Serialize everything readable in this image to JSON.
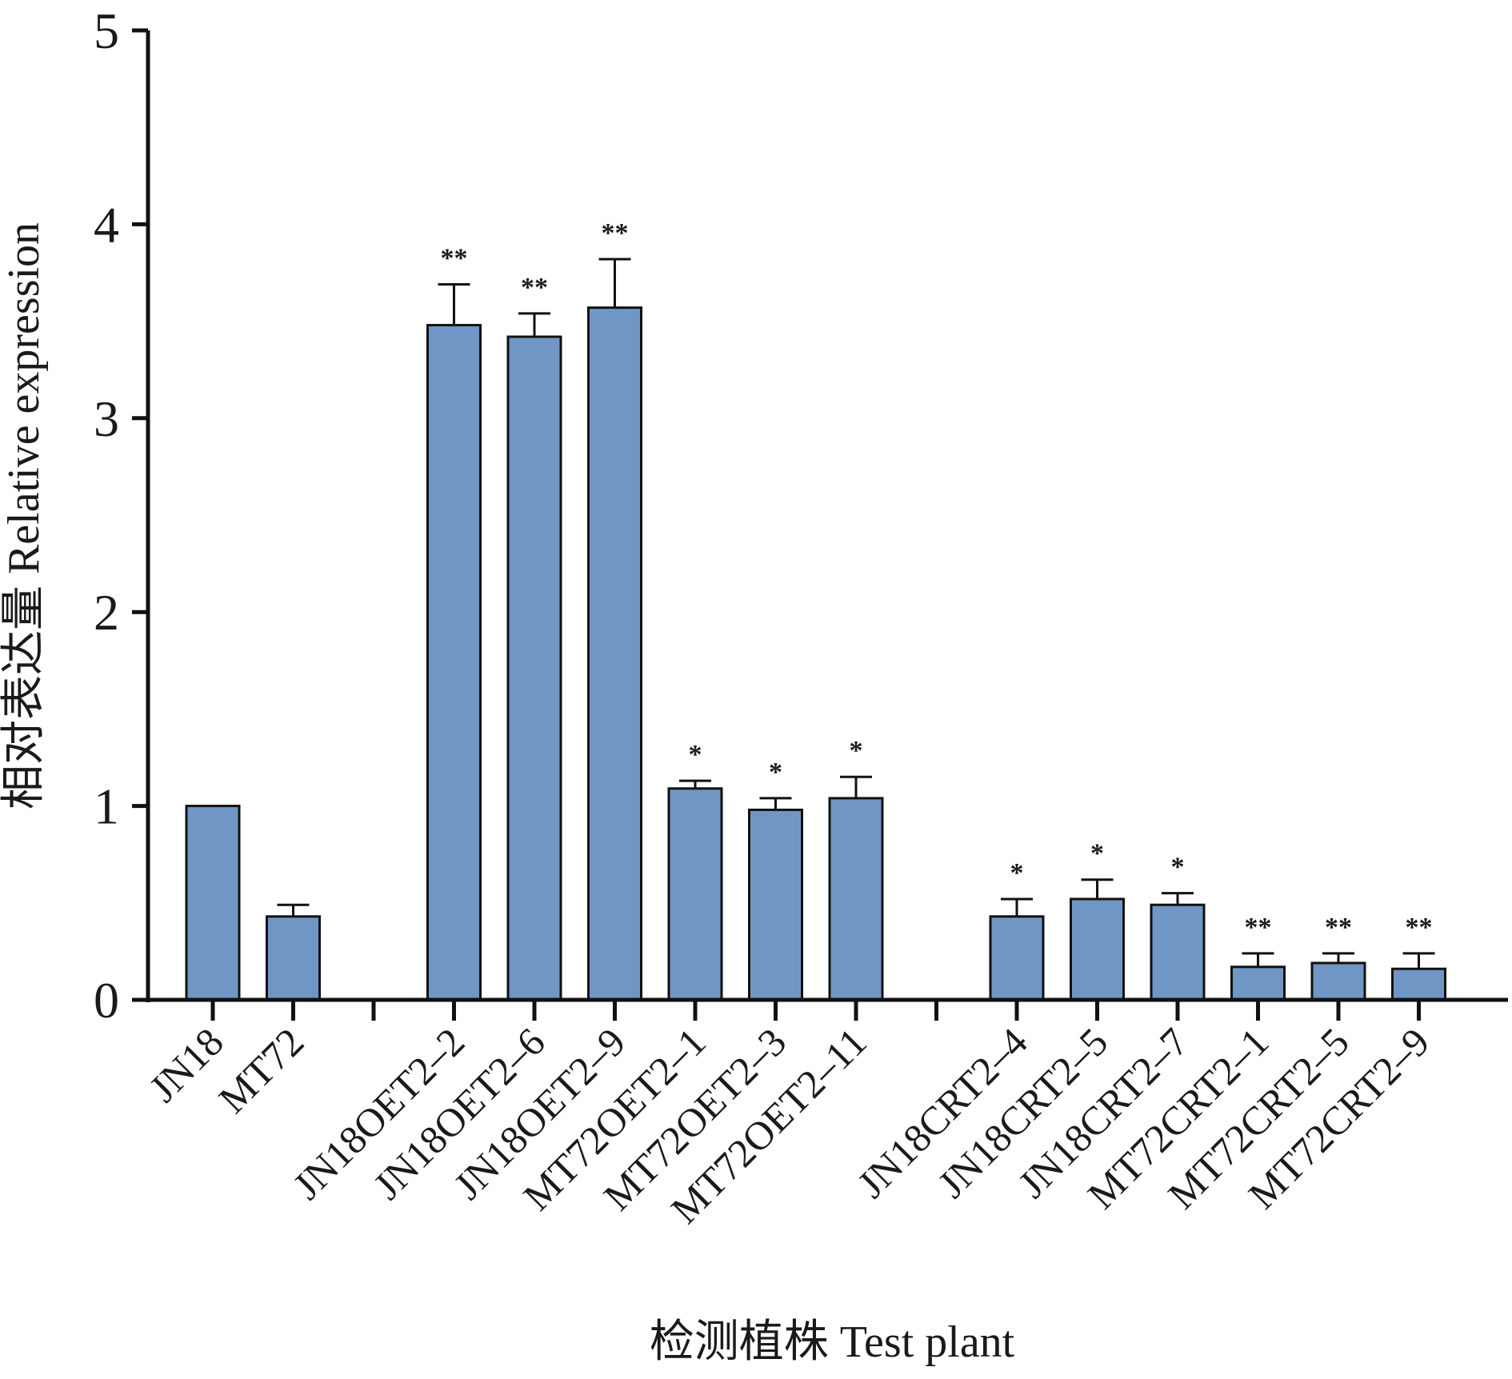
{
  "chart_data": {
    "type": "bar",
    "xlabel": "检测植株 Test plant",
    "ylabel": "相对表达量 Relative expression",
    "ylim": [
      0,
      5
    ],
    "yticks": [
      "0",
      "1",
      "2",
      "3",
      "4",
      "5"
    ],
    "grid": false,
    "legend": "none",
    "bar_color": "#7096c6",
    "groups": [
      {
        "categories": [
          "JN18",
          "MT72"
        ],
        "values": [
          1.0,
          0.43
        ],
        "errors": [
          0,
          0.06
        ],
        "significance": [
          "",
          ""
        ]
      },
      {
        "categories": [
          "JN18OET2–2",
          "JN18OET2–6",
          "JN18OET2–9",
          "MT72OET2–1",
          "MT72OET2–3",
          "MT72OET2–11"
        ],
        "values": [
          3.48,
          3.42,
          3.57,
          1.09,
          0.98,
          1.04
        ],
        "errors": [
          0.21,
          0.12,
          0.25,
          0.04,
          0.06,
          0.11
        ],
        "significance": [
          "**",
          "**",
          "**",
          "*",
          "*",
          "*"
        ]
      },
      {
        "categories": [
          "JN18CRT2–4",
          "JN18CRT2–5",
          "JN18CRT2–7",
          "MT72CRT2–1",
          "MT72CRT2–5",
          "MT72CRT2–9"
        ],
        "values": [
          0.43,
          0.52,
          0.49,
          0.17,
          0.19,
          0.16
        ],
        "errors": [
          0.09,
          0.1,
          0.06,
          0.07,
          0.05,
          0.08
        ],
        "significance": [
          "*",
          "*",
          "*",
          "**",
          "**",
          "**"
        ]
      }
    ]
  }
}
